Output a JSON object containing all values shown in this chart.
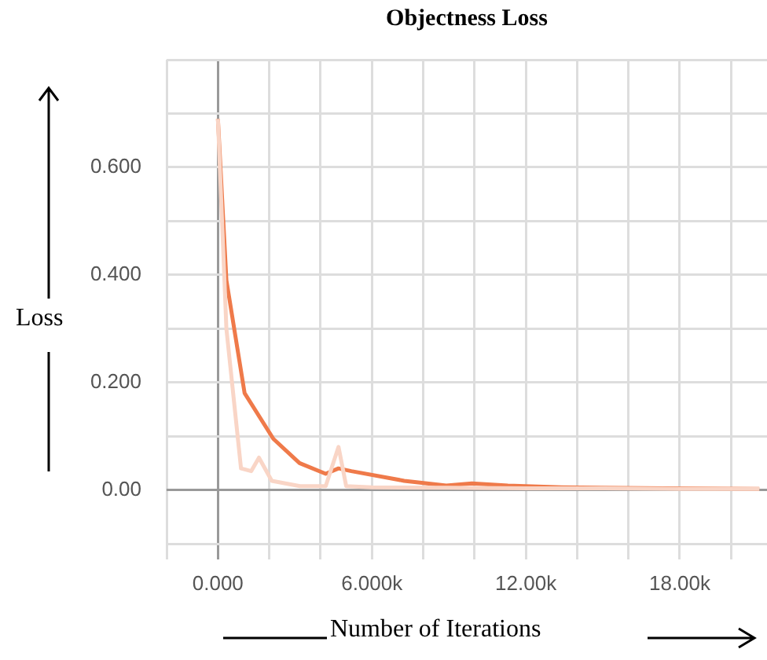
{
  "chart_data": {
    "type": "line",
    "title": "Objectness Loss",
    "xlabel": "Number of Iterations",
    "ylabel": "Loss",
    "series": [
      {
        "color": "#f9d5c6",
        "x": [
          0,
          330,
          900,
          1300,
          1600,
          2100,
          3200,
          4200,
          4700,
          5000,
          6000,
          9000,
          12000,
          15000,
          18000,
          21100
        ],
        "values": [
          0.69,
          0.3,
          0.04,
          0.035,
          0.06,
          0.017,
          0.007,
          0.007,
          0.08,
          0.007,
          0.005,
          0.004,
          0.003,
          0.003,
          0.002,
          0.002
        ]
      },
      {
        "color": "#ef7a4a",
        "x": [
          0,
          330,
          1040,
          2160,
          3180,
          4200,
          4700,
          5200,
          7260,
          8900,
          9900,
          11300,
          13400,
          17400,
          21100
        ],
        "values": [
          0.69,
          0.39,
          0.18,
          0.095,
          0.05,
          0.03,
          0.04,
          0.035,
          0.017,
          0.008,
          0.012,
          0.008,
          0.005,
          0.003,
          0.002
        ]
      }
    ],
    "xlim": [
      -2000,
      21400
    ],
    "xticks": [
      {
        "value": -2000,
        "label": null
      },
      {
        "value": 0,
        "label": "0.000"
      },
      {
        "value": 2000,
        "label": null
      },
      {
        "value": 4000,
        "label": null
      },
      {
        "value": 6000,
        "label": "6.000k"
      },
      {
        "value": 8000,
        "label": null
      },
      {
        "value": 10000,
        "label": null
      },
      {
        "value": 12000,
        "label": "12.00k"
      },
      {
        "value": 14000,
        "label": null
      },
      {
        "value": 16000,
        "label": null
      },
      {
        "value": 18000,
        "label": "18.00k"
      },
      {
        "value": 20000,
        "label": null
      }
    ],
    "ylim": [
      -0.1,
      0.8
    ],
    "yticks": [
      {
        "value": -0.1,
        "label": null
      },
      {
        "value": 0,
        "label": "0.00"
      },
      {
        "value": 0.1,
        "label": null
      },
      {
        "value": 0.2,
        "label": "0.200"
      },
      {
        "value": 0.3,
        "label": null
      },
      {
        "value": 0.4,
        "label": "0.400"
      },
      {
        "value": 0.5,
        "label": null
      },
      {
        "value": 0.6,
        "label": "0.600"
      },
      {
        "value": 0.7,
        "label": null
      },
      {
        "value": 0.8,
        "label": null
      }
    ],
    "grid": true,
    "legend": false,
    "marker": "none",
    "line_style": "solid"
  }
}
